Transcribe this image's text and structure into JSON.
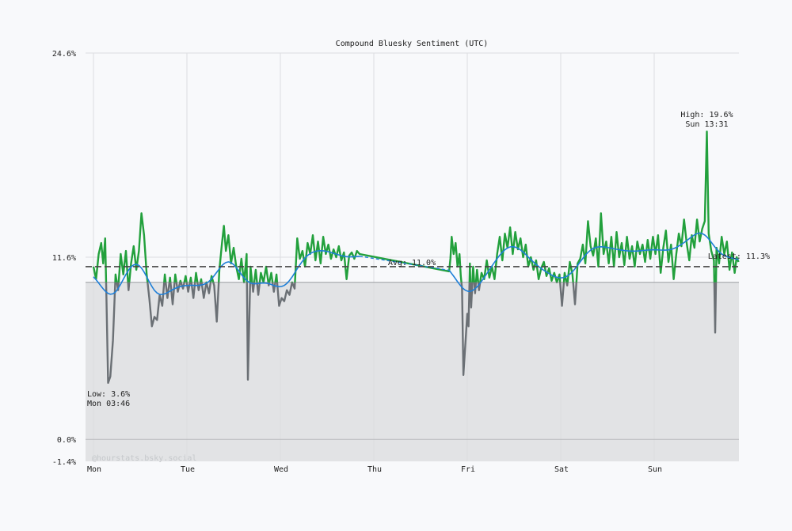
{
  "chart_data": {
    "type": "line",
    "title": "Compound Bluesky Sentiment (UTC)",
    "ylim": [
      -1.4,
      24.6
    ],
    "y_ticks": [
      "24.6%",
      "11.6%",
      "0.0%",
      "-1.4%"
    ],
    "y_tick_values": [
      24.6,
      11.6,
      0.0,
      -1.4
    ],
    "x_ticks": [
      "Mon",
      "Tue",
      "Wed",
      "Thu",
      "Fri",
      "Sat",
      "Sun"
    ],
    "xlim": [
      "Sun 22:00",
      "Sun 21:40"
    ],
    "grid": true,
    "threshold": 10.0,
    "average": 11.0,
    "colors": {
      "above": "#22a03c",
      "below": "#6b7075",
      "smooth": "#1e7fd8",
      "average": "#444444",
      "negative_zone": "#e2e3e5",
      "background": "#f8f9fb"
    },
    "annotations": {
      "high": {
        "label": "High: 19.6%",
        "time": "Sun 13:31",
        "value": 19.6
      },
      "low": {
        "label": "Low: 3.6%",
        "time": "Mon 03:46",
        "value": 3.6
      },
      "avg": {
        "label": "Avg: 11.0%"
      },
      "latest": {
        "label": "Latest: 11.3%",
        "value": 11.3
      }
    },
    "watermark": "@hourstats.bsky.social",
    "series": [
      {
        "points": [
          [
            "Mon 00:00",
            11.0
          ],
          [
            "Mon 00:40",
            10.2
          ],
          [
            "Mon 01:20",
            11.8
          ],
          [
            "Mon 02:00",
            12.5
          ],
          [
            "Mon 02:30",
            11.2
          ],
          [
            "Mon 03:00",
            12.8
          ],
          [
            "Mon 03:20",
            9.0
          ],
          [
            "Mon 03:46",
            3.6
          ],
          [
            "Mon 04:20",
            4.0
          ],
          [
            "Mon 05:00",
            6.3
          ],
          [
            "Mon 05:40",
            10.5
          ],
          [
            "Mon 06:20",
            9.5
          ],
          [
            "Mon 07:00",
            11.8
          ],
          [
            "Mon 07:40",
            10.5
          ],
          [
            "Mon 08:20",
            12.0
          ],
          [
            "Mon 09:00",
            9.5
          ],
          [
            "Mon 09:40",
            11.2
          ],
          [
            "Mon 10:20",
            12.3
          ],
          [
            "Mon 11:00",
            10.8
          ],
          [
            "Mon 11:40",
            12.0
          ],
          [
            "Mon 12:20",
            14.4
          ],
          [
            "Mon 13:00",
            13.0
          ],
          [
            "Mon 13:40",
            10.5
          ],
          [
            "Mon 14:20",
            9.0
          ],
          [
            "Mon 15:00",
            7.2
          ],
          [
            "Mon 15:40",
            7.8
          ],
          [
            "Mon 16:20",
            7.6
          ],
          [
            "Mon 17:00",
            9.2
          ],
          [
            "Mon 17:40",
            8.5
          ],
          [
            "Mon 18:20",
            10.5
          ],
          [
            "Mon 19:00",
            9.0
          ],
          [
            "Mon 19:40",
            10.3
          ],
          [
            "Mon 20:20",
            8.6
          ],
          [
            "Mon 21:00",
            10.5
          ],
          [
            "Mon 21:40",
            9.4
          ],
          [
            "Mon 22:20",
            10.1
          ],
          [
            "Mon 23:00",
            9.6
          ],
          [
            "Mon 23:40",
            10.4
          ],
          [
            "Tue 00:20",
            9.4
          ],
          [
            "Tue 01:00",
            10.3
          ],
          [
            "Tue 01:40",
            9.0
          ],
          [
            "Tue 02:20",
            10.6
          ],
          [
            "Tue 03:00",
            9.5
          ],
          [
            "Tue 03:40",
            10.2
          ],
          [
            "Tue 04:20",
            9.0
          ],
          [
            "Tue 05:00",
            10.0
          ],
          [
            "Tue 05:40",
            9.3
          ],
          [
            "Tue 06:20",
            10.4
          ],
          [
            "Tue 07:00",
            9.8
          ],
          [
            "Tue 07:40",
            7.5
          ],
          [
            "Tue 08:20",
            10.8
          ],
          [
            "Tue 09:00",
            12.5
          ],
          [
            "Tue 09:30",
            13.6
          ],
          [
            "Tue 10:00",
            12.0
          ],
          [
            "Tue 10:40",
            13.0
          ],
          [
            "Tue 11:20",
            11.2
          ],
          [
            "Tue 12:00",
            12.2
          ],
          [
            "Tue 12:40",
            11.0
          ],
          [
            "Tue 13:20",
            10.2
          ],
          [
            "Tue 14:00",
            11.5
          ],
          [
            "Tue 14:40",
            10.0
          ],
          [
            "Tue 15:20",
            11.8
          ],
          [
            "Tue 15:40",
            3.8
          ],
          [
            "Tue 16:20",
            11.0
          ],
          [
            "Tue 17:00",
            9.4
          ],
          [
            "Tue 17:40",
            10.8
          ],
          [
            "Tue 18:20",
            9.2
          ],
          [
            "Tue 19:00",
            10.6
          ],
          [
            "Tue 19:40",
            10.0
          ],
          [
            "Tue 20:20",
            11.0
          ],
          [
            "Tue 21:00",
            9.8
          ],
          [
            "Tue 21:40",
            10.6
          ],
          [
            "Tue 22:20",
            9.4
          ],
          [
            "Tue 23:00",
            10.5
          ],
          [
            "Tue 23:40",
            8.5
          ],
          [
            "Wed 00:20",
            9.0
          ],
          [
            "Wed 01:00",
            8.8
          ],
          [
            "Wed 01:40",
            9.5
          ],
          [
            "Wed 02:20",
            9.2
          ],
          [
            "Wed 03:00",
            10.0
          ],
          [
            "Wed 03:40",
            9.6
          ],
          [
            "Wed 04:20",
            12.8
          ],
          [
            "Wed 05:00",
            11.5
          ],
          [
            "Wed 05:40",
            12.0
          ],
          [
            "Wed 06:20",
            11.0
          ],
          [
            "Wed 07:00",
            12.5
          ],
          [
            "Wed 07:40",
            11.8
          ],
          [
            "Wed 08:20",
            13.0
          ],
          [
            "Wed 09:00",
            11.4
          ],
          [
            "Wed 09:40",
            12.6
          ],
          [
            "Wed 10:20",
            11.2
          ],
          [
            "Wed 11:00",
            12.9
          ],
          [
            "Wed 11:40",
            11.8
          ],
          [
            "Wed 12:20",
            12.4
          ],
          [
            "Wed 13:00",
            11.5
          ],
          [
            "Wed 13:40",
            12.1
          ],
          [
            "Wed 14:20",
            11.6
          ],
          [
            "Wed 15:00",
            12.3
          ],
          [
            "Wed 15:40",
            11.4
          ],
          [
            "Wed 16:20",
            11.9
          ],
          [
            "Wed 17:00",
            10.2
          ],
          [
            "Wed 17:40",
            11.7
          ],
          [
            "Wed 18:20",
            11.9
          ],
          [
            "Wed 19:00",
            11.5
          ],
          [
            "Wed 19:40",
            12.0
          ],
          [
            "Wed 20:20",
            11.8
          ],
          [
            "Thu 19:20",
            10.7
          ],
          [
            "Thu 19:40",
            11.5
          ],
          [
            "Thu 20:00",
            12.9
          ],
          [
            "Thu 20:30",
            11.8
          ],
          [
            "Thu 21:00",
            12.5
          ],
          [
            "Thu 21:30",
            11.0
          ],
          [
            "Thu 22:00",
            11.8
          ],
          [
            "Thu 22:20",
            10.4
          ],
          [
            "Thu 22:40",
            9.6
          ],
          [
            "Thu 23:00",
            4.1
          ],
          [
            "Thu 23:30",
            6.0
          ],
          [
            "Fri 00:00",
            8.0
          ],
          [
            "Fri 00:20",
            7.2
          ],
          [
            "Fri 00:40",
            11.2
          ],
          [
            "Fri 01:00",
            8.4
          ],
          [
            "Fri 01:30",
            11.0
          ],
          [
            "Fri 02:00",
            9.3
          ],
          [
            "Fri 02:30",
            10.8
          ],
          [
            "Fri 03:00",
            9.5
          ],
          [
            "Fri 03:40",
            10.6
          ],
          [
            "Fri 04:20",
            10.2
          ],
          [
            "Fri 05:00",
            11.4
          ],
          [
            "Fri 05:40",
            10.3
          ],
          [
            "Fri 06:20",
            11.0
          ],
          [
            "Fri 07:00",
            10.2
          ],
          [
            "Fri 07:40",
            11.8
          ],
          [
            "Fri 08:20",
            12.9
          ],
          [
            "Fri 09:00",
            11.4
          ],
          [
            "Fri 09:40",
            13.1
          ],
          [
            "Fri 10:20",
            12.2
          ],
          [
            "Fri 11:00",
            13.5
          ],
          [
            "Fri 11:40",
            11.8
          ],
          [
            "Fri 12:20",
            13.2
          ],
          [
            "Fri 13:00",
            12.1
          ],
          [
            "Fri 13:40",
            12.8
          ],
          [
            "Fri 14:20",
            11.6
          ],
          [
            "Fri 15:00",
            12.4
          ],
          [
            "Fri 15:40",
            11.0
          ],
          [
            "Fri 16:20",
            11.6
          ],
          [
            "Fri 17:00",
            10.8
          ],
          [
            "Fri 17:40",
            11.4
          ],
          [
            "Fri 18:20",
            10.2
          ],
          [
            "Fri 19:00",
            10.9
          ],
          [
            "Fri 19:40",
            11.3
          ],
          [
            "Fri 20:20",
            10.4
          ],
          [
            "Fri 21:00",
            10.9
          ],
          [
            "Fri 21:40",
            10.1
          ],
          [
            "Fri 22:20",
            10.6
          ],
          [
            "Fri 23:00",
            10.0
          ],
          [
            "Fri 23:40",
            10.5
          ],
          [
            "Sat 00:20",
            8.5
          ],
          [
            "Sat 01:00",
            10.6
          ],
          [
            "Sat 01:40",
            9.8
          ],
          [
            "Sat 02:20",
            11.3
          ],
          [
            "Sat 03:00",
            10.5
          ],
          [
            "Sat 03:40",
            8.6
          ],
          [
            "Sat 04:20",
            11.2
          ],
          [
            "Sat 05:00",
            11.5
          ],
          [
            "Sat 05:40",
            12.4
          ],
          [
            "Sat 06:20",
            11.2
          ],
          [
            "Sat 07:00",
            13.9
          ],
          [
            "Sat 07:40",
            12.3
          ],
          [
            "Sat 08:20",
            11.7
          ],
          [
            "Sat 09:00",
            12.8
          ],
          [
            "Sat 09:40",
            11.0
          ],
          [
            "Sat 10:20",
            14.4
          ],
          [
            "Sat 11:00",
            11.8
          ],
          [
            "Sat 11:40",
            12.6
          ],
          [
            "Sat 12:20",
            11.2
          ],
          [
            "Sat 13:00",
            12.9
          ],
          [
            "Sat 13:40",
            11.0
          ],
          [
            "Sat 14:20",
            13.2
          ],
          [
            "Sat 15:00",
            11.6
          ],
          [
            "Sat 15:40",
            12.5
          ],
          [
            "Sat 16:20",
            11.1
          ],
          [
            "Sat 17:00",
            12.9
          ],
          [
            "Sat 17:40",
            11.5
          ],
          [
            "Sat 18:20",
            12.3
          ],
          [
            "Sat 19:00",
            11.0
          ],
          [
            "Sat 19:40",
            12.6
          ],
          [
            "Sat 20:20",
            11.8
          ],
          [
            "Sat 21:00",
            12.4
          ],
          [
            "Sat 21:40",
            11.3
          ],
          [
            "Sat 22:20",
            12.7
          ],
          [
            "Sat 23:00",
            11.5
          ],
          [
            "Sat 23:40",
            12.9
          ],
          [
            "Sun 00:20",
            11.8
          ],
          [
            "Sun 01:00",
            13.0
          ],
          [
            "Sun 01:40",
            10.6
          ],
          [
            "Sun 02:20",
            12.2
          ],
          [
            "Sun 03:00",
            13.3
          ],
          [
            "Sun 03:40",
            11.3
          ],
          [
            "Sun 04:20",
            12.4
          ],
          [
            "Sun 05:00",
            10.2
          ],
          [
            "Sun 05:40",
            11.8
          ],
          [
            "Sun 06:20",
            13.1
          ],
          [
            "Sun 07:00",
            12.3
          ],
          [
            "Sun 07:40",
            14.0
          ],
          [
            "Sun 08:20",
            12.5
          ],
          [
            "Sun 09:00",
            11.4
          ],
          [
            "Sun 09:40",
            13.0
          ],
          [
            "Sun 10:20",
            12.2
          ],
          [
            "Sun 11:00",
            14.0
          ],
          [
            "Sun 11:40",
            12.6
          ],
          [
            "Sun 12:20",
            13.4
          ],
          [
            "Sun 13:00",
            13.9
          ],
          [
            "Sun 13:31",
            19.6
          ],
          [
            "Sun 14:00",
            13.1
          ],
          [
            "Sun 14:40",
            12.0
          ],
          [
            "Sun 15:20",
            11.4
          ],
          [
            "Sun 15:40",
            6.8
          ],
          [
            "Sun 16:00",
            12.2
          ],
          [
            "Sun 16:40",
            11.2
          ],
          [
            "Sun 17:20",
            12.9
          ],
          [
            "Sun 18:00",
            11.8
          ],
          [
            "Sun 18:40",
            12.6
          ],
          [
            "Sun 19:20",
            10.8
          ],
          [
            "Sun 20:00",
            11.9
          ],
          [
            "Sun 20:40",
            10.6
          ],
          [
            "Sun 21:10",
            11.6
          ],
          [
            "Sun 21:40",
            11.3
          ]
        ]
      }
    ]
  }
}
